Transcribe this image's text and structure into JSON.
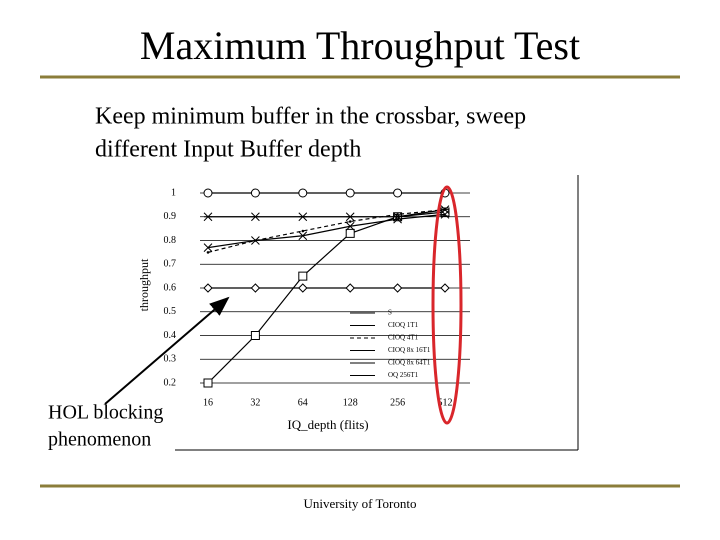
{
  "slide": {
    "title": "Maximum Throughput Test",
    "bullet": [
      "Keep minimum buffer in the crossbar, sweep",
      "different Input Buffer depth"
    ],
    "annotation": [
      "HOL blocking",
      "phenomenon"
    ],
    "footer": "University of Toronto"
  },
  "chart_data": {
    "type": "line",
    "xlabel": "IQ_depth (flits)",
    "ylabel": "throughput",
    "categories": [
      "16",
      "32",
      "64",
      "128",
      "256",
      "512"
    ],
    "ylim": [
      0.2,
      1
    ],
    "yticks": [
      0.2,
      0.3,
      0.4,
      0.5,
      0.6,
      0.7,
      0.8,
      0.9,
      1
    ],
    "grid": true,
    "series": [
      {
        "name": "S",
        "color": "#000000",
        "marker": "diamond",
        "dash": false,
        "values": [
          0.6,
          0.6,
          0.6,
          0.6,
          0.6,
          0.6
        ]
      },
      {
        "name": "CIOQ 1T1",
        "color": "#000000",
        "marker": "square",
        "dash": false,
        "values": [
          0.2,
          0.4,
          0.65,
          0.83,
          0.9,
          0.92
        ]
      },
      {
        "name": "CIOQ 4T1",
        "color": "#000000",
        "marker": "none",
        "dash": true,
        "values": [
          0.75,
          0.8,
          0.84,
          0.88,
          0.91,
          0.93
        ]
      },
      {
        "name": "CIOQ 8x 16T1",
        "color": "#000000",
        "marker": "cross",
        "dash": false,
        "values": [
          0.77,
          0.8,
          0.82,
          0.86,
          0.89,
          0.91
        ]
      },
      {
        "name": "CIOQ 8x 64T1",
        "color": "#000000",
        "marker": "star",
        "dash": false,
        "values": [
          0.9,
          0.9,
          0.9,
          0.9,
          0.9,
          0.93
        ]
      },
      {
        "name": "OQ 256T1",
        "color": "#000000",
        "marker": "circle",
        "dash": false,
        "values": [
          1,
          1,
          1,
          1,
          1,
          1
        ]
      }
    ]
  }
}
